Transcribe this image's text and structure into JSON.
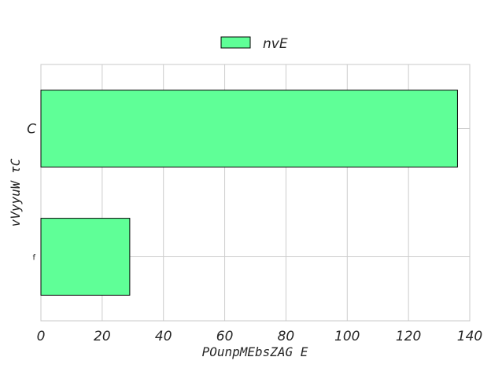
{
  "chart_data": {
    "type": "bar",
    "orientation": "horizontal",
    "categories": [
      "C",
      "f"
    ],
    "series": [
      {
        "name": "nvE",
        "values": [
          136,
          29
        ]
      }
    ],
    "xlabel": "POunpMEbsZAG E",
    "ylabel": "vVyyuW  τC",
    "xlim": [
      0,
      140
    ],
    "xticks": [
      "0",
      "20",
      "40",
      "60",
      "80",
      "100",
      "120",
      "140"
    ],
    "grid": true,
    "legend_position": "top-center",
    "colors": {
      "bar": "#5fff97",
      "edge": "#000000",
      "grid": "#cccccc",
      "axis": "#c8c8c8"
    }
  }
}
